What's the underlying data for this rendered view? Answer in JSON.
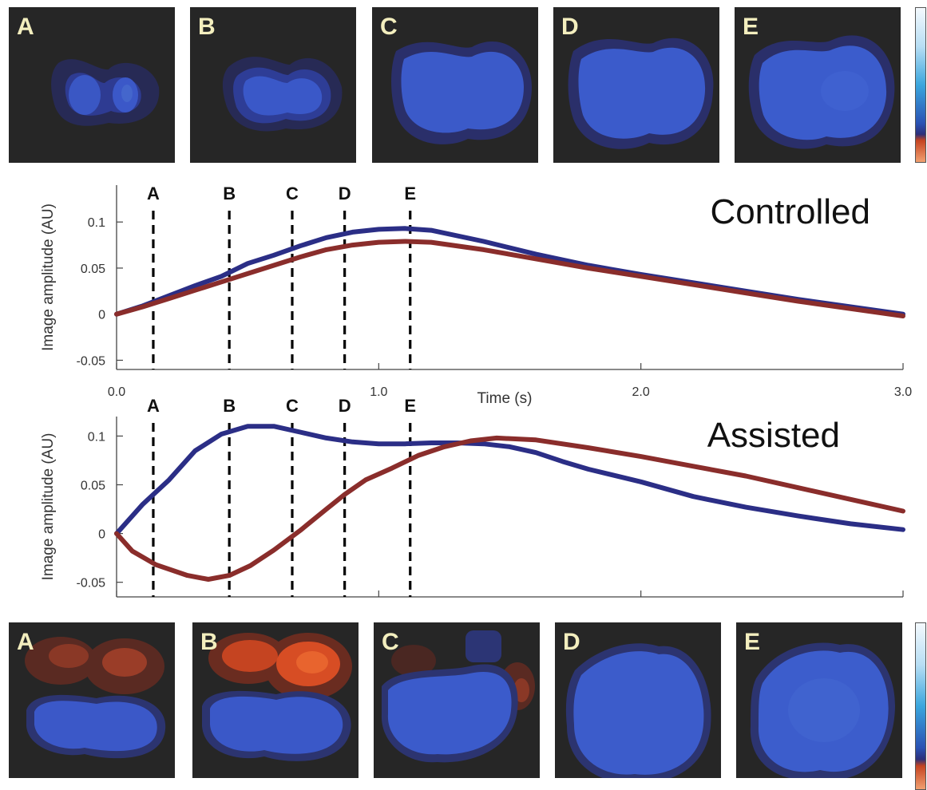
{
  "top_panels": [
    {
      "label": "A"
    },
    {
      "label": "B"
    },
    {
      "label": "C"
    },
    {
      "label": "D"
    },
    {
      "label": "E"
    }
  ],
  "bottom_panels": [
    {
      "label": "A"
    },
    {
      "label": "B"
    },
    {
      "label": "C"
    },
    {
      "label": "D"
    },
    {
      "label": "E"
    }
  ],
  "colors": {
    "panel_bg": "#262626",
    "blue_series": "#2b2e86",
    "red_series": "#8a2d2b",
    "blob_blue": "#3a5fcf",
    "blob_halo": "#2c3470",
    "blob_orange": "#e2562a",
    "letter": "#f3eebe"
  },
  "chart_data": [
    {
      "type": "line",
      "title": "Controlled",
      "xlabel": "Time (s)",
      "ylabel": "Image amplitude (AU)",
      "xlim": [
        0,
        3.0
      ],
      "ylim": [
        -0.06,
        0.14
      ],
      "x_tick_labels": [
        "0.0",
        "1.0",
        "2.0",
        "3.0"
      ],
      "y_ticks": [
        -0.05,
        0,
        0.05,
        0.1
      ],
      "y_tick_labels": [
        "-0.05",
        "0",
        "0.05",
        "0.1"
      ],
      "markers": [
        {
          "label": "A",
          "x": 0.14
        },
        {
          "label": "B",
          "x": 0.43
        },
        {
          "label": "C",
          "x": 0.67
        },
        {
          "label": "D",
          "x": 0.87
        },
        {
          "label": "E",
          "x": 1.12
        }
      ],
      "series": [
        {
          "color": "#2b2e86",
          "x": [
            0,
            0.1,
            0.2,
            0.3,
            0.4,
            0.5,
            0.6,
            0.7,
            0.8,
            0.9,
            1.0,
            1.1,
            1.2,
            1.4,
            1.6,
            1.8,
            2.0,
            2.2,
            2.4,
            2.6,
            2.8,
            3.0
          ],
          "y": [
            0,
            0.009,
            0.02,
            0.031,
            0.041,
            0.055,
            0.064,
            0.074,
            0.083,
            0.089,
            0.092,
            0.093,
            0.091,
            0.079,
            0.065,
            0.053,
            0.043,
            0.034,
            0.025,
            0.016,
            0.008,
            0
          ]
        },
        {
          "color": "#8a2d2b",
          "x": [
            0,
            0.1,
            0.2,
            0.3,
            0.4,
            0.5,
            0.6,
            0.7,
            0.8,
            0.9,
            1.0,
            1.1,
            1.2,
            1.4,
            1.6,
            1.8,
            2.0,
            2.2,
            2.4,
            2.6,
            2.8,
            3.0
          ],
          "y": [
            0,
            0.008,
            0.017,
            0.026,
            0.035,
            0.044,
            0.053,
            0.062,
            0.07,
            0.075,
            0.078,
            0.079,
            0.078,
            0.07,
            0.06,
            0.05,
            0.041,
            0.032,
            0.023,
            0.014,
            0.006,
            -0.002
          ]
        }
      ]
    },
    {
      "type": "line",
      "title": "Assisted",
      "xlabel": "",
      "ylabel": "Image amplitude (AU)",
      "xlim": [
        0,
        3.0
      ],
      "ylim": [
        -0.065,
        0.12
      ],
      "y_ticks": [
        -0.05,
        0,
        0.05,
        0.1
      ],
      "y_tick_labels": [
        "-0.05",
        "0",
        "0.05",
        "0.1"
      ],
      "markers": [
        {
          "label": "A",
          "x": 0.14
        },
        {
          "label": "B",
          "x": 0.43
        },
        {
          "label": "C",
          "x": 0.67
        },
        {
          "label": "D",
          "x": 0.87
        },
        {
          "label": "E",
          "x": 1.12
        }
      ],
      "series": [
        {
          "color": "#2b2e86",
          "x": [
            0,
            0.1,
            0.2,
            0.3,
            0.4,
            0.5,
            0.6,
            0.7,
            0.8,
            0.9,
            1.0,
            1.1,
            1.2,
            1.3,
            1.4,
            1.5,
            1.6,
            1.7,
            1.8,
            2.0,
            2.2,
            2.4,
            2.6,
            2.8,
            3.0
          ],
          "y": [
            0,
            0.03,
            0.055,
            0.085,
            0.102,
            0.11,
            0.11,
            0.104,
            0.098,
            0.094,
            0.092,
            0.092,
            0.093,
            0.093,
            0.092,
            0.089,
            0.083,
            0.074,
            0.066,
            0.053,
            0.038,
            0.027,
            0.018,
            0.01,
            0.004
          ]
        },
        {
          "color": "#8a2d2b",
          "x": [
            0,
            0.06,
            0.15,
            0.27,
            0.35,
            0.43,
            0.51,
            0.6,
            0.7,
            0.8,
            0.87,
            0.95,
            1.05,
            1.15,
            1.25,
            1.35,
            1.45,
            1.6,
            1.8,
            2.0,
            2.2,
            2.4,
            2.6,
            2.8,
            3.0
          ],
          "y": [
            0,
            -0.018,
            -0.032,
            -0.043,
            -0.047,
            -0.043,
            -0.033,
            -0.017,
            0.003,
            0.025,
            0.04,
            0.055,
            0.067,
            0.08,
            0.089,
            0.095,
            0.098,
            0.096,
            0.088,
            0.079,
            0.069,
            0.059,
            0.047,
            0.035,
            0.023
          ]
        }
      ]
    }
  ]
}
